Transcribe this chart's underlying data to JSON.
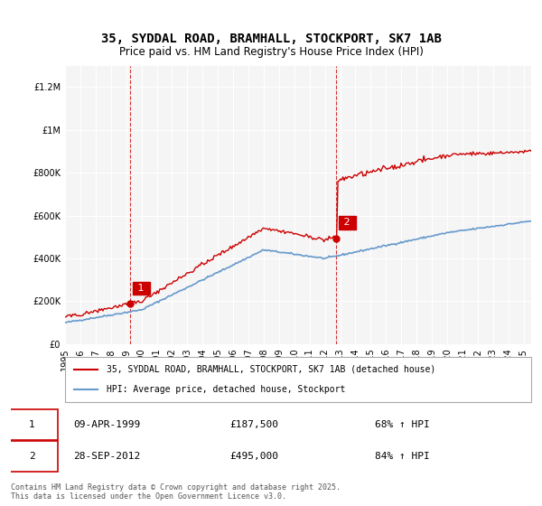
{
  "title_line1": "35, SYDDAL ROAD, BRAMHALL, STOCKPORT, SK7 1AB",
  "title_line2": "Price paid vs. HM Land Registry's House Price Index (HPI)",
  "legend_label_red": "35, SYDDAL ROAD, BRAMHALL, STOCKPORT, SK7 1AB (detached house)",
  "legend_label_blue": "HPI: Average price, detached house, Stockport",
  "purchase1_date": "09-APR-1999",
  "purchase1_price": 187500,
  "purchase1_pct": "68% ↑ HPI",
  "purchase2_date": "28-SEP-2012",
  "purchase2_price": 495000,
  "purchase2_pct": "84% ↑ HPI",
  "footer": "Contains HM Land Registry data © Crown copyright and database right 2025.\nThis data is licensed under the Open Government Licence v3.0.",
  "color_red": "#cc0000",
  "color_blue": "#6699cc",
  "color_vline": "#cc0000",
  "ylim_min": 0,
  "ylim_max": 1300000,
  "background": "#f5f5f5"
}
